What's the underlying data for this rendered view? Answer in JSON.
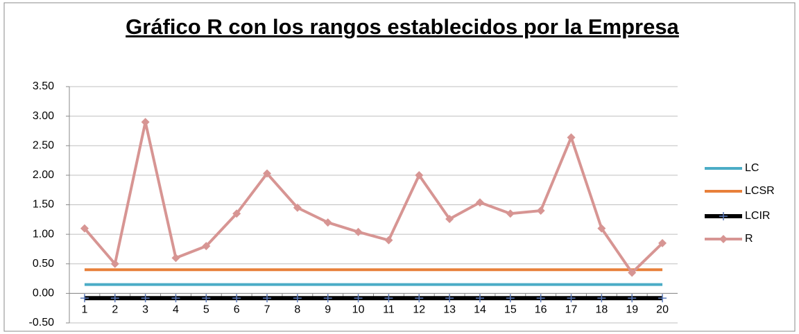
{
  "chart_data": {
    "type": "line",
    "title": "Gráfico R con los rangos establecidos por la Empresa",
    "categories": [
      "1",
      "2",
      "3",
      "4",
      "5",
      "6",
      "7",
      "8",
      "9",
      "10",
      "11",
      "12",
      "13",
      "14",
      "15",
      "16",
      "17",
      "18",
      "19",
      "20"
    ],
    "series": [
      {
        "name": "LC",
        "color": "#4bacc6",
        "marker": "none",
        "values": [
          0.15,
          0.15,
          0.15,
          0.15,
          0.15,
          0.15,
          0.15,
          0.15,
          0.15,
          0.15,
          0.15,
          0.15,
          0.15,
          0.15,
          0.15,
          0.15,
          0.15,
          0.15,
          0.15,
          0.15
        ]
      },
      {
        "name": "LCSR",
        "color": "#e8803a",
        "marker": "none",
        "values": [
          0.4,
          0.4,
          0.4,
          0.4,
          0.4,
          0.4,
          0.4,
          0.4,
          0.4,
          0.4,
          0.4,
          0.4,
          0.4,
          0.4,
          0.4,
          0.4,
          0.4,
          0.4,
          0.4,
          0.4
        ]
      },
      {
        "name": "LCIR",
        "color": "#000000",
        "marker": "plus",
        "values": [
          -0.08,
          -0.08,
          -0.08,
          -0.08,
          -0.08,
          -0.08,
          -0.08,
          -0.08,
          -0.08,
          -0.08,
          -0.08,
          -0.08,
          -0.08,
          -0.08,
          -0.08,
          -0.08,
          -0.08,
          -0.08,
          -0.08,
          -0.08
        ]
      },
      {
        "name": "R",
        "color": "#d79593",
        "marker": "diamond",
        "values": [
          1.1,
          0.5,
          2.9,
          0.6,
          0.8,
          1.35,
          2.03,
          1.45,
          1.2,
          1.04,
          0.9,
          2.0,
          1.26,
          1.54,
          1.35,
          1.4,
          2.64,
          1.1,
          0.35,
          0.85
        ]
      }
    ],
    "ylim": [
      -0.5,
      3.5
    ],
    "yticks": [
      {
        "value": -0.5,
        "label": "-0.50"
      },
      {
        "value": 0,
        "label": "0.00"
      },
      {
        "value": 0.5,
        "label": "0.50"
      },
      {
        "value": 1,
        "label": "1.00"
      },
      {
        "value": 1.5,
        "label": "1.50"
      },
      {
        "value": 2,
        "label": "2.00"
      },
      {
        "value": 2.5,
        "label": "2.50"
      },
      {
        "value": 3,
        "label": "3.00"
      },
      {
        "value": 3.5,
        "label": "3.50"
      }
    ],
    "grid": true,
    "legend": "right"
  }
}
